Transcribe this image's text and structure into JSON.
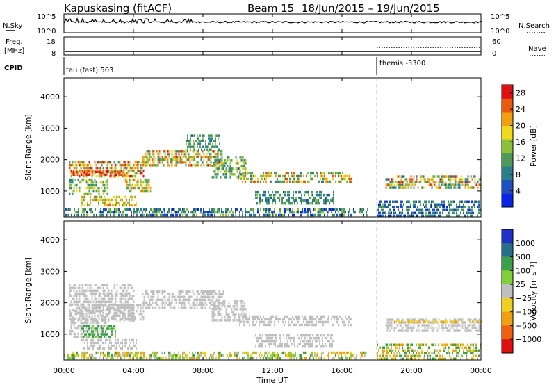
{
  "header": {
    "title": "Kapuskasing (fitACF)",
    "beam": "Beam 15",
    "dates": "18/Jun/2015 – 19/Jun/2015"
  },
  "nsky": {
    "label": "N.Sky",
    "tick_top": "10^5",
    "tick_bottom": "10^0",
    "right_label": "N.Search",
    "right_tick_top": "10^5",
    "right_tick_bottom": "10^0"
  },
  "freq": {
    "label_line1": "Freq.",
    "label_line2": "[MHz]",
    "tick_top": "18",
    "tick_bottom": "8",
    "right_label": "Nave",
    "right_tick_top": "60",
    "right_tick_bottom": "0"
  },
  "cpid": {
    "label": "CPID",
    "mode1": "tau (fast) 503",
    "mode2": "themis -3300"
  },
  "time_axis": {
    "label": "Time UT",
    "ticks": [
      "00:00",
      "04:00",
      "08:00",
      "12:00",
      "16:00",
      "20:00",
      "00:00"
    ]
  },
  "power_colorbar": {
    "label": "Power [dB]",
    "ticks": [
      "4",
      "8",
      "12",
      "16",
      "20",
      "24",
      "28"
    ],
    "colors": [
      "#0a24e6",
      "#1f4fbf",
      "#2a7f8a",
      "#4d9a5a",
      "#8cc03c",
      "#f0d81e",
      "#f0a010",
      "#e85a10",
      "#e01010"
    ]
  },
  "velocity_colorbar": {
    "label": "Velocity [m s⁻¹]",
    "ticks": [
      "1000",
      "500",
      "100",
      "25",
      "−25",
      "−100",
      "−500",
      "−1000"
    ],
    "colors": [
      "#2030c8",
      "#2a6f8a",
      "#3aa04a",
      "#7fd03a",
      "#c0c0c0",
      "#f0d020",
      "#f0a010",
      "#f06010",
      "#e01010"
    ]
  },
  "chart_data": {
    "type": "heatmap",
    "x_label": "Time UT",
    "y_label": "Slant Range [km]",
    "xlim_hours": [
      0,
      24
    ],
    "ylim_km": [
      180,
      4600
    ],
    "y_ticks": [
      1000,
      2000,
      3000,
      4000
    ],
    "panels": [
      {
        "name": "Power [dB]",
        "range": [
          0,
          30
        ],
        "scatter_regions": [
          {
            "t0": 0.3,
            "t1": 4.6,
            "r0": 1450,
            "r1": 1950,
            "v": [
              10,
              30
            ]
          },
          {
            "t0": 0.5,
            "t1": 3.5,
            "r0": 1500,
            "r1": 1650,
            "v": [
              22,
              30
            ]
          },
          {
            "t0": 0.3,
            "t1": 2.5,
            "r0": 900,
            "r1": 1400,
            "v": [
              8,
              20
            ]
          },
          {
            "t0": 1.0,
            "t1": 4.2,
            "r0": 550,
            "r1": 850,
            "v": [
              12,
              26
            ]
          },
          {
            "t0": 3.5,
            "t1": 5.0,
            "r0": 1000,
            "r1": 1400,
            "v": [
              10,
              24
            ]
          },
          {
            "t0": 4.5,
            "t1": 9.2,
            "r0": 1850,
            "r1": 2300,
            "v": [
              8,
              28
            ]
          },
          {
            "t0": 7.0,
            "t1": 9.0,
            "r0": 2300,
            "r1": 2800,
            "v": [
              6,
              16
            ]
          },
          {
            "t0": 8.5,
            "t1": 10.5,
            "r0": 1400,
            "r1": 2100,
            "v": [
              6,
              18
            ]
          },
          {
            "t0": 10.0,
            "t1": 16.5,
            "r0": 1300,
            "r1": 1600,
            "v": [
              8,
              26
            ]
          },
          {
            "t0": 11.0,
            "t1": 15.5,
            "r0": 600,
            "r1": 1000,
            "v": [
              6,
              14
            ]
          },
          {
            "t0": 0.0,
            "t1": 17.5,
            "r0": 200,
            "r1": 450,
            "v": [
              2,
              16
            ]
          },
          {
            "t0": 18.5,
            "t1": 24.0,
            "r0": 1100,
            "r1": 1500,
            "v": [
              6,
              28
            ]
          },
          {
            "t0": 18.0,
            "t1": 24.0,
            "r0": 200,
            "r1": 700,
            "v": [
              2,
              14
            ]
          }
        ]
      },
      {
        "name": "Velocity [m s^-1]",
        "range": [
          -1000,
          1000
        ],
        "scatter_regions": [
          {
            "t0": 0.3,
            "t1": 4.6,
            "r0": 1450,
            "r1": 1950,
            "v": [
              -25,
              25
            ]
          },
          {
            "t0": 0.3,
            "t1": 4.0,
            "r0": 1450,
            "r1": 2600,
            "v": [
              -25,
              25
            ]
          },
          {
            "t0": 0.3,
            "t1": 2.5,
            "r0": 900,
            "r1": 1400,
            "v": [
              -20,
              20
            ]
          },
          {
            "t0": 1.0,
            "t1": 3.0,
            "r0": 900,
            "r1": 1300,
            "v": [
              60,
              300
            ]
          },
          {
            "t0": 1.0,
            "t1": 4.2,
            "r0": 550,
            "r1": 850,
            "v": [
              -20,
              20
            ]
          },
          {
            "t0": 4.5,
            "t1": 9.2,
            "r0": 1850,
            "r1": 2400,
            "v": [
              -20,
              20
            ]
          },
          {
            "t0": 8.5,
            "t1": 10.5,
            "r0": 1400,
            "r1": 2100,
            "v": [
              -20,
              20
            ]
          },
          {
            "t0": 10.0,
            "t1": 16.5,
            "r0": 1300,
            "r1": 1600,
            "v": [
              -20,
              20
            ]
          },
          {
            "t0": 11.0,
            "t1": 15.5,
            "r0": 600,
            "r1": 1000,
            "v": [
              -20,
              20
            ]
          },
          {
            "t0": 0.0,
            "t1": 17.5,
            "r0": 200,
            "r1": 450,
            "v": [
              -150,
              150
            ]
          },
          {
            "t0": 18.5,
            "t1": 24.0,
            "r0": 1100,
            "r1": 1500,
            "v": [
              -20,
              20
            ]
          },
          {
            "t0": 19.0,
            "t1": 24.0,
            "r0": 1380,
            "r1": 1430,
            "v": [
              -120,
              -60
            ]
          },
          {
            "t0": 18.0,
            "t1": 24.0,
            "r0": 200,
            "r1": 700,
            "v": [
              -300,
              300
            ]
          }
        ]
      }
    ],
    "cpid_change_hour": 18.0
  }
}
